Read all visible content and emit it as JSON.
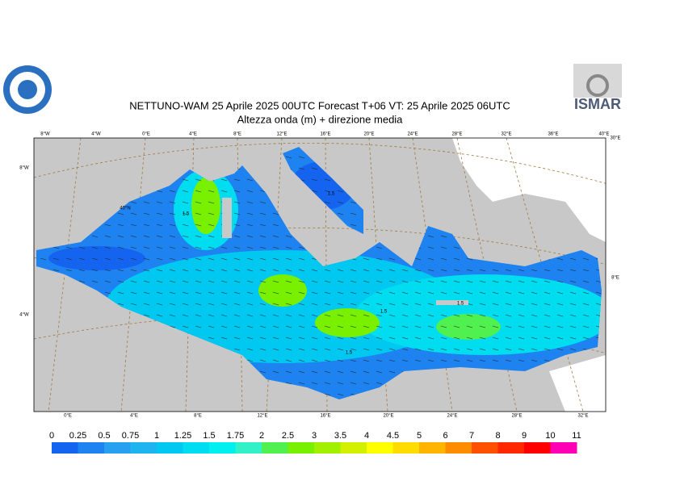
{
  "header": {
    "title": "NETTUNO-WAM  25   Aprile  2025 00UTC Forecast T+06 VT: 25   Aprile  2025 06UTC",
    "subtitle": "Altezza onda (m) + direzione media",
    "logo_right": "ISMAR"
  },
  "map": {
    "top_lon_labels": [
      "8°W",
      "4°W",
      "0°E",
      "4°E",
      "8°E",
      "12°E",
      "16°E",
      "20°E",
      "24°E",
      "28°E",
      "32°E",
      "36°E",
      "40°E"
    ],
    "bottom_lon_labels": [
      "0°E",
      "4°E",
      "8°E",
      "12°E",
      "16°E",
      "20°E",
      "24°E",
      "28°E",
      "32°E"
    ],
    "left_labels": [
      "8°W",
      "4°W"
    ],
    "right_labels": [
      "30°E",
      "8°E"
    ],
    "lat_label": "40°N",
    "contour_labels": [
      "1.5",
      "1.5",
      "1.5",
      "1.5",
      "1.5"
    ]
  },
  "colorbar": {
    "levels": [
      0,
      0.25,
      0.5,
      0.75,
      1,
      1.25,
      1.5,
      1.75,
      2,
      2.5,
      3,
      3.5,
      4,
      4.5,
      5,
      6,
      7,
      8,
      9,
      10,
      11
    ],
    "colors": [
      "#1464f0",
      "#1e82f0",
      "#28a0f0",
      "#1eb4f0",
      "#00c8f0",
      "#00dcf0",
      "#00f0f0",
      "#32f0c8",
      "#50f050",
      "#78f000",
      "#a0f000",
      "#d2f000",
      "#ffff00",
      "#ffdc00",
      "#ffb400",
      "#ff8c00",
      "#ff5000",
      "#ff2800",
      "#ff0000",
      "#ff00b4"
    ]
  }
}
